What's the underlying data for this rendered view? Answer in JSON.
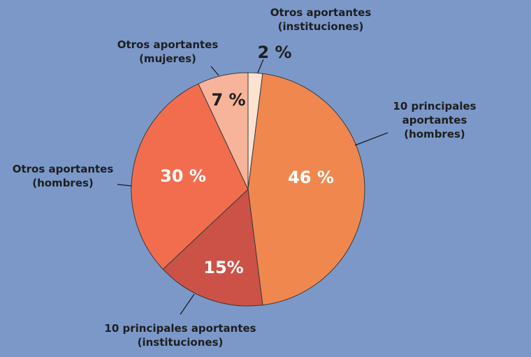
{
  "chart_data": {
    "type": "pie",
    "categories": [
      "Otros aportantes\n(instituciones)",
      "10 principales aportantes\n(hombres)",
      "10 principales aportantes\n(instituciones)",
      "Otros aportantes\n(hombres)",
      "Otros aportantes\n(mujeres)"
    ],
    "values": [
      2,
      46,
      15,
      30,
      7
    ],
    "value_labels": [
      "2 %",
      "46 %",
      "15%",
      "30 %",
      "7 %"
    ],
    "colors": [
      "#fde2d2",
      "#f0874f",
      "#cc5247",
      "#f26d4e",
      "#f7b49a"
    ],
    "start_angle": 0,
    "direction": "clockwise"
  }
}
